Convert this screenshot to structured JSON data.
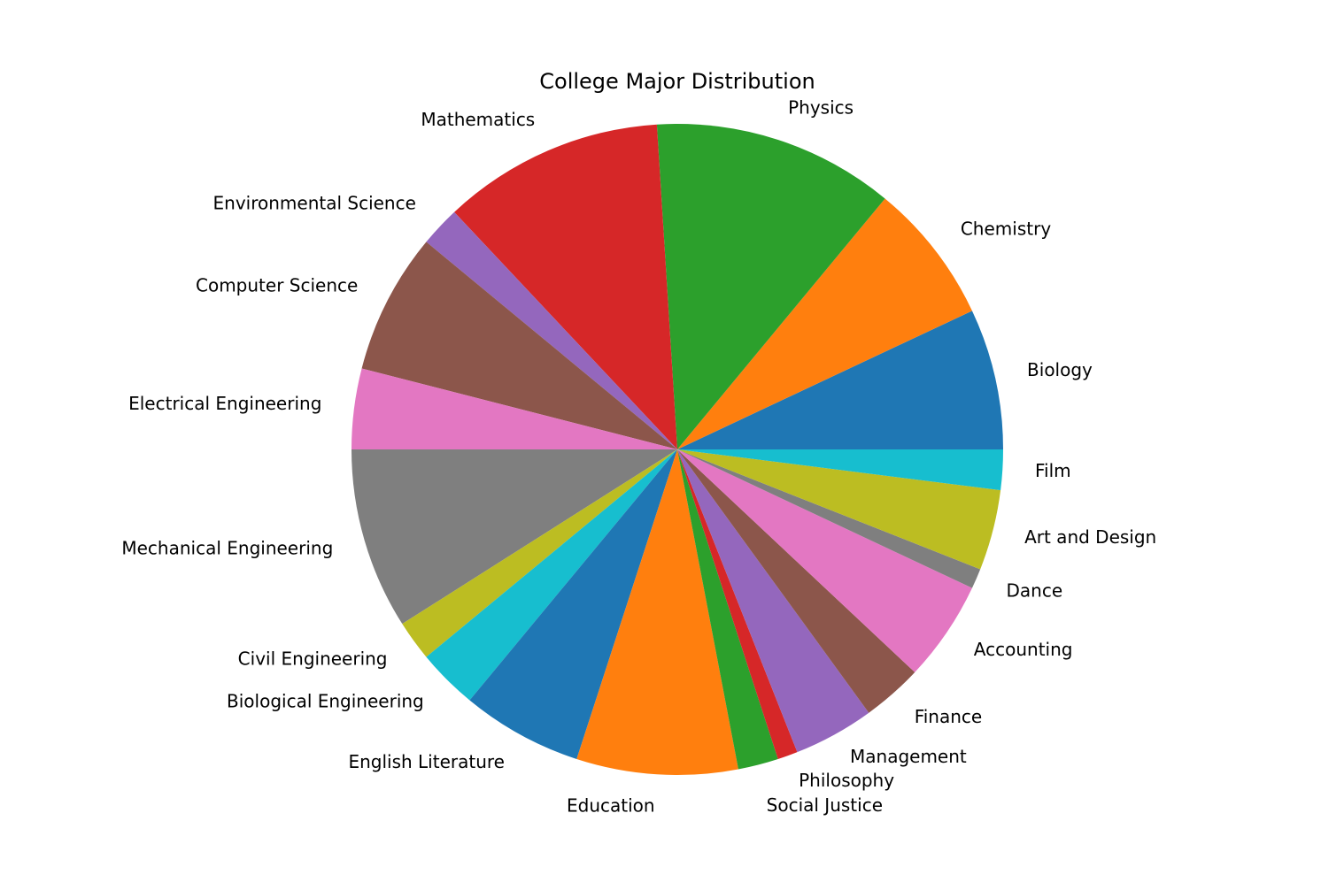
{
  "chart_data": {
    "type": "pie",
    "title": "College Major Distribution",
    "start_angle_deg": 0,
    "direction": "counterclockwise",
    "categories": [
      "Biology",
      "Chemistry",
      "Physics",
      "Mathematics",
      "Environmental Science",
      "Computer Science",
      "Electrical Engineering",
      "Mechanical Engineering",
      "Civil Engineering",
      "Biological Engineering",
      "English Literature",
      "Education",
      "Social Justice",
      "Philosophy",
      "Management",
      "Finance",
      "Accounting",
      "Dance",
      "Art and Design",
      "Film"
    ],
    "values": [
      7,
      7,
      12,
      11,
      2,
      7,
      4,
      9,
      2,
      3,
      6,
      8,
      2,
      1,
      4,
      3,
      5,
      1,
      4,
      2
    ],
    "colors": [
      "#1f77b4",
      "#ff7f0e",
      "#2ca02c",
      "#d62728",
      "#9467bd",
      "#8c564b",
      "#e377c2",
      "#7f7f7f",
      "#bcbd22",
      "#17becf"
    ],
    "legend": "none"
  }
}
